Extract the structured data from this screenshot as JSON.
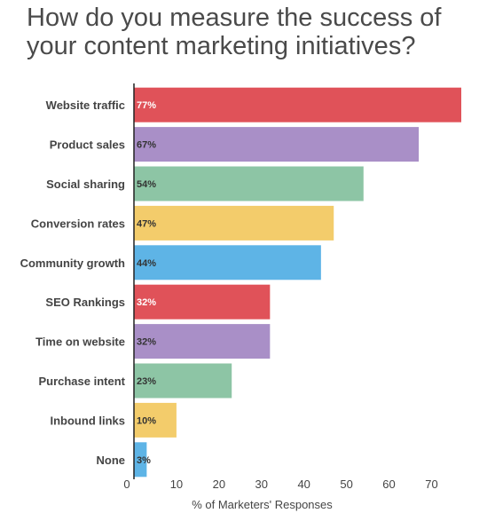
{
  "title_lines": [
    "How do you measure the success of",
    "your content marketing initiatives?"
  ],
  "chart_data": {
    "type": "bar",
    "orientation": "horizontal",
    "title": "How do you measure the success of your content marketing initiatives?",
    "xlabel": "% of Marketers' Responses",
    "ylabel": "",
    "xlim": [
      0,
      77
    ],
    "xticks": [
      0,
      10,
      20,
      30,
      40,
      50,
      60,
      70
    ],
    "grid": false,
    "categories": [
      "Website traffic",
      "Product sales",
      "Social sharing",
      "Conversion rates",
      "Community growth",
      "SEO Rankings",
      "Time on website",
      "Purchase intent",
      "Inbound links",
      "None"
    ],
    "values": [
      77,
      67,
      54,
      47,
      44,
      32,
      32,
      23,
      10,
      3
    ],
    "value_labels": [
      "77%",
      "67%",
      "54%",
      "47%",
      "44%",
      "32%",
      "32%",
      "23%",
      "10%",
      "3%"
    ],
    "colors": [
      "#e05259",
      "#a98fc7",
      "#8dc5a5",
      "#f3cc6b",
      "#5eb4e6",
      "#e05259",
      "#a98fc7",
      "#8dc5a5",
      "#f3cc6b",
      "#5eb4e6"
    ],
    "label_colors": [
      "#ffffff",
      "#333333",
      "#333333",
      "#333333",
      "#333333",
      "#ffffff",
      "#333333",
      "#333333",
      "#333333",
      "#333333"
    ]
  }
}
